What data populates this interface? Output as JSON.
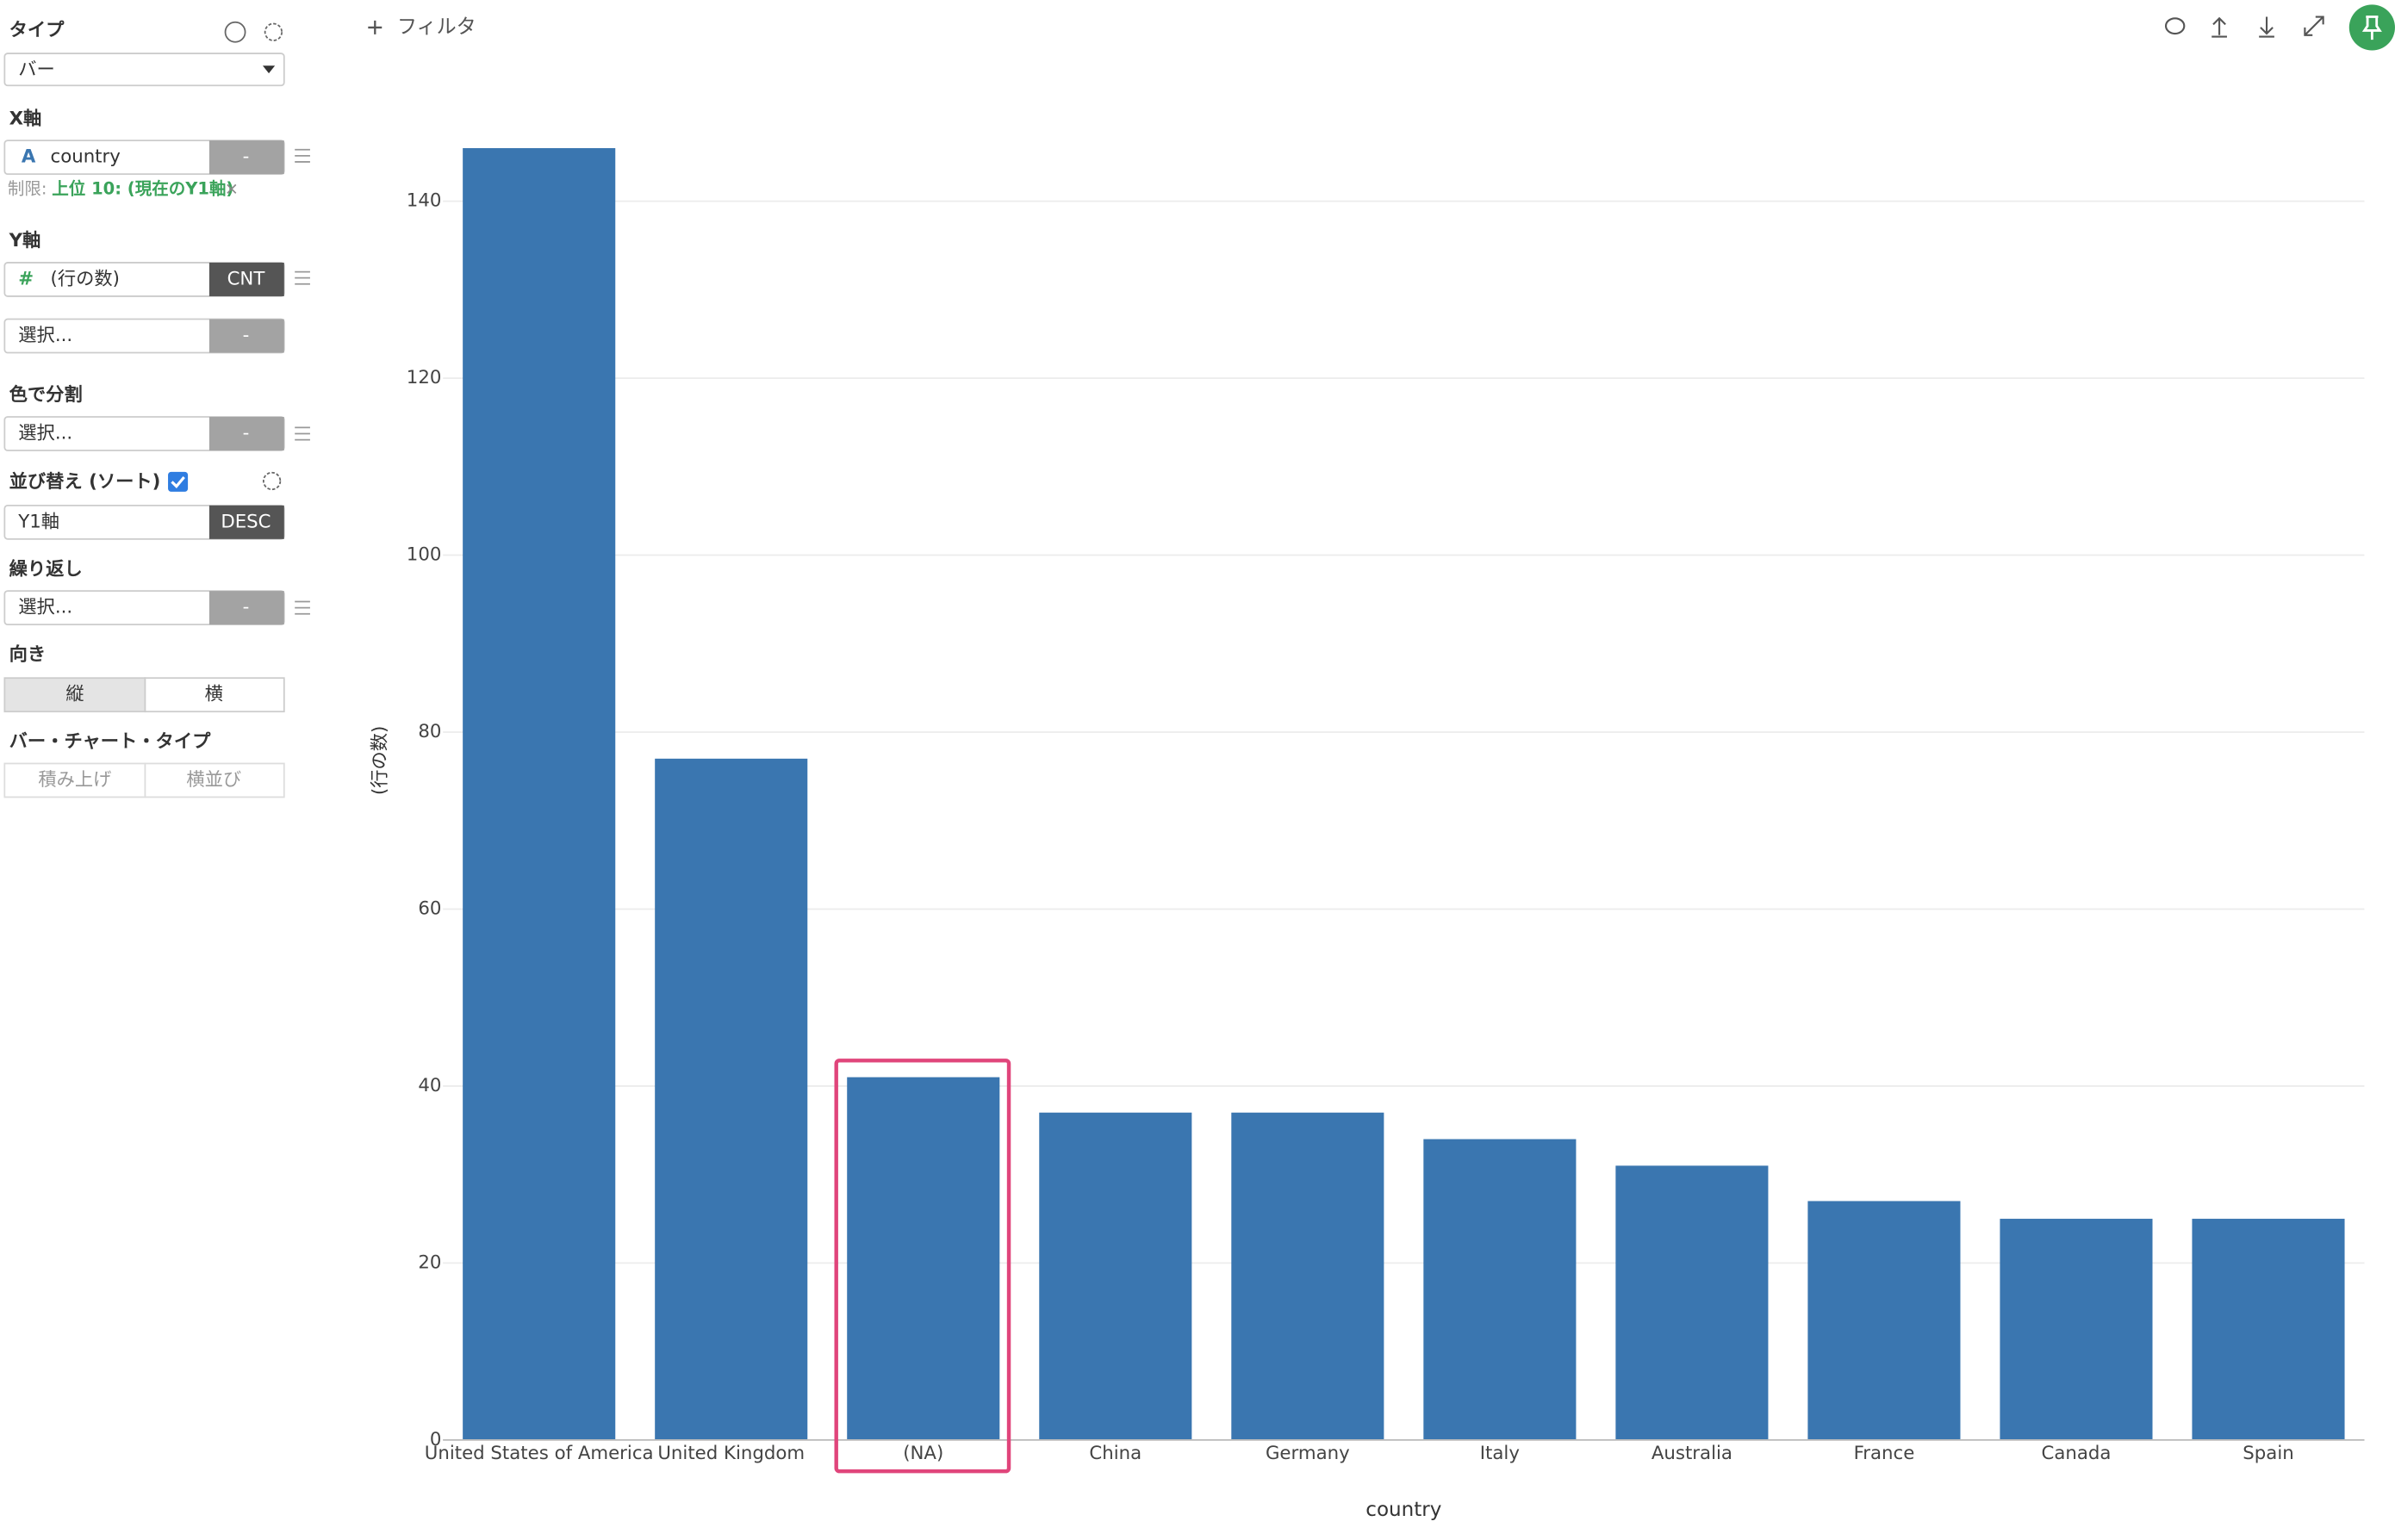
{
  "sidebar": {
    "type_label": "タイプ",
    "type_value": "バー",
    "x_axis_label": "X軸",
    "x_icon": "A",
    "x_field": "country",
    "x_agg": "-",
    "limit_label": "制限:",
    "limit_value": "上位 10: (現在のY1軸)",
    "limit_clear": "×",
    "y_axis_label": "Y軸",
    "y_icon": "#",
    "y_field": "(行の数)",
    "y_agg": "CNT",
    "y2_field": "選択...",
    "y2_agg": "-",
    "color_label": "色で分割",
    "color_field": "選択...",
    "color_agg": "-",
    "sort_label": "並び替え (ソート)",
    "sort_field": "Y1軸",
    "sort_order": "DESC",
    "repeat_label": "繰り返し",
    "repeat_field": "選択...",
    "repeat_agg": "-",
    "orientation_label": "向き",
    "orientation_options": [
      "縦",
      "横"
    ],
    "bar_type_label": "バー・チャート・タイプ",
    "bar_type_options": [
      "積み上げ",
      "横並び"
    ]
  },
  "toolbar": {
    "filter": "フィルタ"
  },
  "chart_data": {
    "type": "bar",
    "x_label": "country",
    "y_label": "(行の数)",
    "categories": [
      "United States of America",
      "United Kingdom",
      "(NA)",
      "China",
      "Germany",
      "Italy",
      "Australia",
      "France",
      "Canada",
      "Spain"
    ],
    "values": [
      146,
      77,
      41,
      37,
      37,
      34,
      31,
      27,
      25,
      25
    ],
    "color": "#3a76b0",
    "ylim": [
      0,
      146
    ],
    "yticks": [
      0,
      20,
      40,
      60,
      80,
      100,
      120,
      140
    ],
    "grid": true
  }
}
